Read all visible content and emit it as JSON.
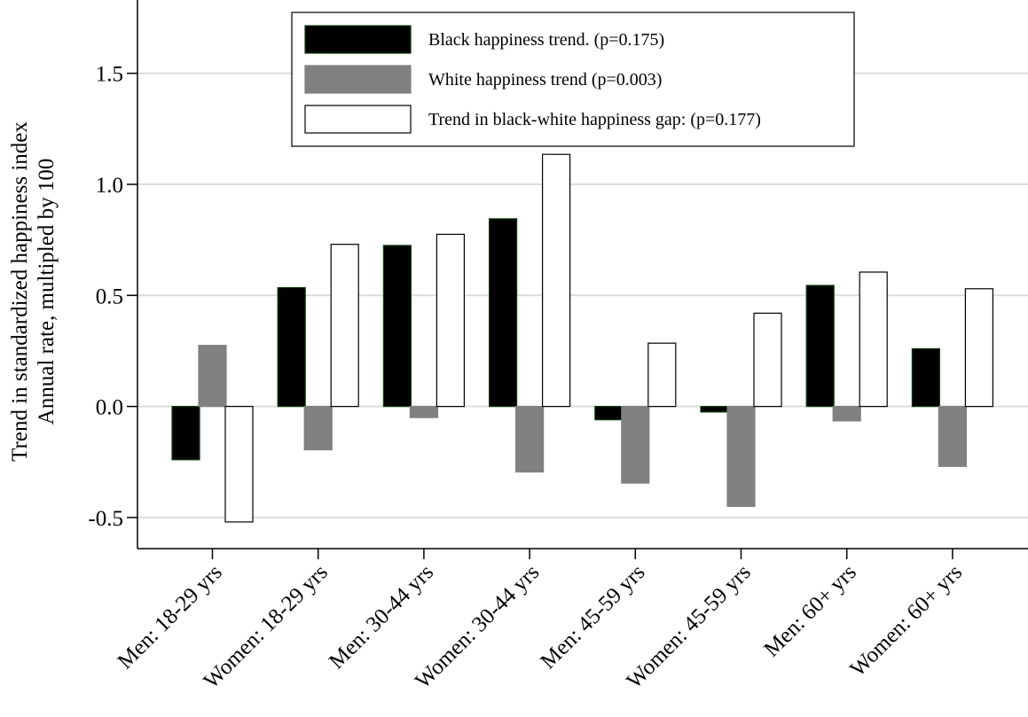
{
  "chart_data": {
    "type": "bar",
    "title": "",
    "ylabel_lines": [
      "Trend in standardized happiness index",
      "Annual rate, multipled by 100"
    ],
    "xlabel": "",
    "categories": [
      "Men: 18-29 yrs",
      "Women: 18-29 yrs",
      "Men: 30-44 yrs",
      "Women: 30-44 yrs",
      "Men: 45-59 yrs",
      "Women: 45-59 yrs",
      "Men: 60+ yrs",
      "Women: 60+ yrs"
    ],
    "series": [
      {
        "name": "Black happiness trend. (p=0.175)",
        "color": "#000000",
        "edge": "#0b3d0b",
        "values": [
          -0.24,
          0.535,
          0.725,
          0.845,
          -0.06,
          -0.025,
          0.545,
          0.26
        ]
      },
      {
        "name": "White happiness trend (p=0.003)",
        "color": "#808080",
        "edge": "#808080",
        "values": [
          0.275,
          -0.195,
          -0.05,
          -0.295,
          -0.345,
          -0.45,
          -0.065,
          -0.27
        ]
      },
      {
        "name": "Trend in black-white happiness gap: (p=0.177)",
        "color": "#ffffff",
        "edge": "#000000",
        "values": [
          -0.52,
          0.73,
          0.775,
          1.135,
          0.285,
          0.42,
          0.605,
          0.53
        ]
      }
    ],
    "yticks": [
      {
        "value": -0.5,
        "label": "-0.5"
      },
      {
        "value": 0.0,
        "label": "0.0"
      },
      {
        "value": 0.5,
        "label": "0.5"
      },
      {
        "value": 1.0,
        "label": "1.0"
      },
      {
        "value": 1.5,
        "label": "1.5"
      }
    ],
    "ylim": [
      -0.64,
      1.83
    ],
    "grid": true,
    "legend_position": "top-center"
  }
}
